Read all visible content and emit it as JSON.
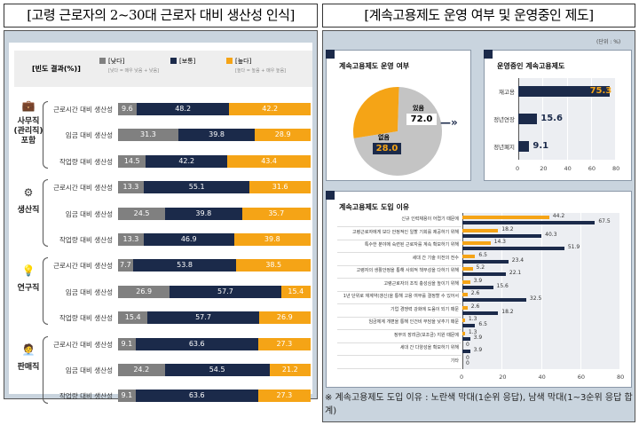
{
  "left": {
    "title": "[고령 근로자의 2~30대 근로자 대비 생산성 인식]",
    "legend": {
      "heading": "[빈도 결과(%)]",
      "items": [
        {
          "label": "[낮다]",
          "note": "[낮다 = 매우 낮음 + 낮음]",
          "color": "#808080"
        },
        {
          "label": "[보통]",
          "note": "",
          "color": "#1b2a4a"
        },
        {
          "label": "[높다]",
          "note": "[높다 = 높음 + 매우 높음]",
          "color": "#f5a416"
        }
      ]
    },
    "groups": [
      {
        "name": "사무직\n(관리직)\n포함",
        "icon": "briefcase-icon"
      },
      {
        "name": "생산직",
        "icon": "gears-icon"
      },
      {
        "name": "연구직",
        "icon": "lightbulb-icon"
      },
      {
        "name": "판매직",
        "icon": "salesperson-icon"
      }
    ]
  },
  "right": {
    "title": "[계속고용제도 운영 여부 및 운영중인 제도]",
    "unit": "(단위 : %)",
    "pie_title": "계속고용제도 운영 여부",
    "bar_title": "운영중인 계속고용제도",
    "reasons_title": "계속고용제도 도입 이유",
    "footnote": "※ 계속고용제도 도입 이유 : 노란색 막대(1순위 응답), 남색 막대(1~3순위 응답 합계)"
  },
  "chart_data": [
    {
      "type": "bar",
      "orientation": "horizontal",
      "stacked": true,
      "percent": true,
      "series_names": [
        "[낮다]",
        "[보통]",
        "[높다]"
      ],
      "colors": [
        "#808080",
        "#1b2a4a",
        "#f5a416"
      ],
      "rows": [
        {
          "group": 0,
          "label": "근로시간 대비 생산성",
          "values": [
            9.6,
            48.2,
            42.2
          ]
        },
        {
          "group": 0,
          "label": "임금 대비 생산성",
          "values": [
            31.3,
            39.8,
            28.9
          ]
        },
        {
          "group": 0,
          "label": "작업량 대비 생산성",
          "values": [
            14.5,
            42.2,
            43.4
          ]
        },
        {
          "group": 1,
          "label": "근로시간 대비 생산성",
          "values": [
            13.3,
            55.1,
            31.6
          ]
        },
        {
          "group": 1,
          "label": "임금 대비 생산성",
          "values": [
            24.5,
            39.8,
            35.7
          ]
        },
        {
          "group": 1,
          "label": "작업량 대비 생산성",
          "values": [
            13.3,
            46.9,
            39.8
          ]
        },
        {
          "group": 2,
          "label": "근로시간 대비 생산성",
          "values": [
            7.7,
            53.8,
            38.5
          ]
        },
        {
          "group": 2,
          "label": "임금 대비 생산성",
          "values": [
            26.9,
            57.7,
            15.4
          ]
        },
        {
          "group": 2,
          "label": "작업량 대비 생산성",
          "values": [
            15.4,
            57.7,
            26.9
          ]
        },
        {
          "group": 3,
          "label": "근로시간 대비 생산성",
          "values": [
            9.1,
            63.6,
            27.3
          ]
        },
        {
          "group": 3,
          "label": "임금 대비 생산성",
          "values": [
            24.2,
            54.5,
            21.2
          ]
        },
        {
          "group": 3,
          "label": "작업량 대비 생산성",
          "values": [
            9.1,
            63.6,
            27.3
          ]
        }
      ]
    },
    {
      "type": "pie",
      "title": "계속고용제도 운영 여부",
      "slices": [
        {
          "label": "있음",
          "value": 72.0,
          "color": "#c4c4c4"
        },
        {
          "label": "없음",
          "value": 28.0,
          "color": "#f5a416"
        }
      ]
    },
    {
      "type": "bar",
      "orientation": "horizontal",
      "title": "운영중인 계속고용제도",
      "categories": [
        "재고용",
        "정년연장",
        "정년폐지"
      ],
      "values": [
        75.3,
        15.6,
        9.1
      ],
      "xlim": [
        0,
        80
      ],
      "xticks": [
        "0",
        "20",
        "40",
        "60",
        "80"
      ],
      "color": "#1b2a4a"
    },
    {
      "type": "bar",
      "orientation": "horizontal",
      "title": "계속고용제도 도입 이유",
      "categories": [
        "신규 인력채용이 어렵기 때문에",
        "고령근로자에게 보다 안정적인 일할 기회를 제공하기 위해",
        "특수한 분야에 숙련된 근로자를 계속 확보하기 위해",
        "세대 간 기술 이전의 전수",
        "고령자의 생활안정을 통해 사회적 책무성을 다하기 위해",
        "고령근로자의 조직 충성심을 높이기 위해",
        "1년 단위로 재계약(갱신)을 통해 고용 여부를 결정할 수 있어서",
        "기업 경쟁력 강화에 도움이 되기 때문",
        "임금체계 개편을 통해 인건비 부담을 낮추기 때문",
        "정부의 장려금(보조금) 지원 때문에",
        "세대 간 다양성을 확보하기 위해",
        "기타"
      ],
      "series": [
        {
          "name": "1순위",
          "color": "#f5a416",
          "values": [
            44.2,
            18.2,
            14.3,
            6.5,
            5.2,
            3.9,
            2.6,
            2.6,
            1.3,
            1.3,
            0,
            0
          ]
        },
        {
          "name": "1~3순위 합계",
          "color": "#1b2a4a",
          "values": [
            67.5,
            40.3,
            51.9,
            23.4,
            22.1,
            15.6,
            32.5,
            18.2,
            6.5,
            3.9,
            3.9,
            0
          ]
        }
      ],
      "xlim": [
        0,
        80
      ],
      "xticks": [
        "0",
        "20",
        "40",
        "60",
        "80"
      ]
    }
  ]
}
